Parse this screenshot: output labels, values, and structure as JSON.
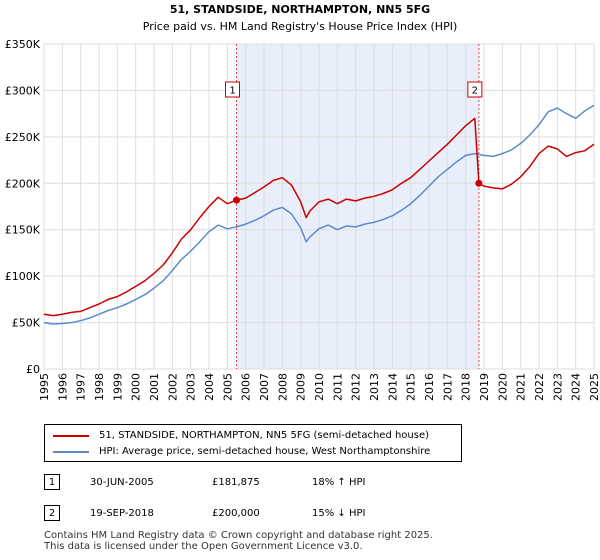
{
  "chart_data": {
    "type": "line",
    "title": "51, STANDSIDE, NORTHAMPTON, NN5 5FG",
    "subtitle": "Price paid vs. HM Land Registry's House Price Index (HPI)",
    "xlabel": "",
    "ylabel": "",
    "xlim": [
      1995.0,
      2025.0
    ],
    "ylim": [
      0,
      350000
    ],
    "y_ticks": [
      0,
      50000,
      100000,
      150000,
      200000,
      250000,
      300000,
      350000
    ],
    "y_tick_labels": [
      "£0",
      "£50K",
      "£100K",
      "£150K",
      "£200K",
      "£250K",
      "£300K",
      "£350K"
    ],
    "x_ticks": [
      1995,
      1996,
      1997,
      1998,
      1999,
      2000,
      2001,
      2002,
      2003,
      2004,
      2005,
      2006,
      2007,
      2008,
      2009,
      2010,
      2011,
      2012,
      2013,
      2014,
      2015,
      2016,
      2017,
      2018,
      2019,
      2020,
      2021,
      2022,
      2023,
      2024,
      2025
    ],
    "x_tick_labels": [
      "1995",
      "1996",
      "1997",
      "1998",
      "1999",
      "2000",
      "2001",
      "2002",
      "2003",
      "2004",
      "2005",
      "2006",
      "2007",
      "2008",
      "2009",
      "2010",
      "2011",
      "2012",
      "2013",
      "2014",
      "2015",
      "2016",
      "2017",
      "2018",
      "2019",
      "2020",
      "2021",
      "2022",
      "2023",
      "2024",
      "2025"
    ],
    "grid": true,
    "shaded_period": [
      2005.5,
      2018.72
    ],
    "series": [
      {
        "name": "51, STANDSIDE, NORTHAMPTON, NN5 5FG (semi-detached house)",
        "color": "#cc0000",
        "x": [
          1995.0,
          1995.5,
          1996.0,
          1996.5,
          1997.0,
          1997.5,
          1998.0,
          1998.5,
          1999.0,
          1999.5,
          2000.0,
          2000.5,
          2001.0,
          2001.5,
          2002.0,
          2002.5,
          2003.0,
          2003.5,
          2004.0,
          2004.5,
          2005.0,
          2005.5,
          2006.0,
          2006.5,
          2007.0,
          2007.5,
          2008.0,
          2008.5,
          2009.0,
          2009.3,
          2009.5,
          2010.0,
          2010.5,
          2011.0,
          2011.5,
          2012.0,
          2012.5,
          2013.0,
          2013.5,
          2014.0,
          2014.5,
          2015.0,
          2015.5,
          2016.0,
          2016.5,
          2017.0,
          2017.5,
          2018.0,
          2018.5,
          2018.72,
          2019.0,
          2019.5,
          2020.0,
          2020.5,
          2021.0,
          2021.5,
          2022.0,
          2022.5,
          2023.0,
          2023.5,
          2024.0,
          2024.5,
          2025.0
        ],
        "values": [
          59000,
          57500,
          59000,
          61000,
          62000,
          66000,
          70000,
          75000,
          78000,
          83000,
          89000,
          95000,
          103000,
          112000,
          125000,
          140000,
          150000,
          163000,
          175000,
          185000,
          178000,
          181875,
          184000,
          190000,
          196000,
          203000,
          206000,
          198000,
          180000,
          163000,
          170000,
          180000,
          183000,
          178000,
          183000,
          181000,
          184000,
          186000,
          189000,
          193000,
          200000,
          206000,
          215000,
          224000,
          233000,
          242000,
          252000,
          262000,
          270000,
          200000,
          197000,
          195000,
          194000,
          199000,
          207000,
          218000,
          232000,
          240000,
          237000,
          229000,
          233000,
          235000,
          242000
        ]
      },
      {
        "name": "HPI: Average price, semi-detached house, West Northamptonshire",
        "color": "#5b8ccc",
        "x": [
          1995.0,
          1995.5,
          1996.0,
          1996.5,
          1997.0,
          1997.5,
          1998.0,
          1998.5,
          1999.0,
          1999.5,
          2000.0,
          2000.5,
          2001.0,
          2001.5,
          2002.0,
          2002.5,
          2003.0,
          2003.5,
          2004.0,
          2004.5,
          2005.0,
          2005.5,
          2006.0,
          2006.5,
          2007.0,
          2007.5,
          2008.0,
          2008.5,
          2009.0,
          2009.3,
          2009.5,
          2010.0,
          2010.5,
          2011.0,
          2011.5,
          2012.0,
          2012.5,
          2013.0,
          2013.5,
          2014.0,
          2014.5,
          2015.0,
          2015.5,
          2016.0,
          2016.5,
          2017.0,
          2017.5,
          2018.0,
          2018.5,
          2019.0,
          2019.5,
          2020.0,
          2020.5,
          2021.0,
          2021.5,
          2022.0,
          2022.5,
          2023.0,
          2023.5,
          2024.0,
          2024.5,
          2025.0
        ],
        "values": [
          50000,
          48500,
          49000,
          50000,
          52000,
          55000,
          59000,
          63000,
          66000,
          70000,
          75000,
          80000,
          87000,
          95000,
          106000,
          118000,
          127000,
          137000,
          148000,
          155000,
          151000,
          153000,
          156000,
          160000,
          165000,
          171000,
          174000,
          167000,
          152000,
          137000,
          142000,
          151000,
          155000,
          150000,
          154000,
          153000,
          156000,
          158000,
          161000,
          165000,
          171000,
          178000,
          187000,
          197000,
          207000,
          215000,
          223000,
          230000,
          232000,
          230000,
          229000,
          232000,
          236000,
          243000,
          252000,
          263000,
          277000,
          281000,
          275000,
          270000,
          278000,
          284000
        ]
      }
    ],
    "markers": [
      {
        "label": "1",
        "x": 2005.5,
        "y": 181875
      },
      {
        "label": "2",
        "x": 2018.72,
        "y": 200000
      }
    ],
    "legend_position": "below"
  },
  "legend": {
    "items": [
      {
        "label": "51, STANDSIDE, NORTHAMPTON, NN5 5FG (semi-detached house)",
        "color": "#cc0000"
      },
      {
        "label": "HPI: Average price, semi-detached house, West Northamptonshire",
        "color": "#5b8ccc"
      }
    ]
  },
  "sales": [
    {
      "num": "1",
      "date": "30-JUN-2005",
      "price": "£181,875",
      "hpi": "18% ↑ HPI"
    },
    {
      "num": "2",
      "date": "19-SEP-2018",
      "price": "£200,000",
      "hpi": "15% ↓ HPI"
    }
  ],
  "footer": {
    "line1": "Contains HM Land Registry data © Crown copyright and database right 2025.",
    "line2": "This data is licensed under the Open Government Licence v3.0."
  }
}
